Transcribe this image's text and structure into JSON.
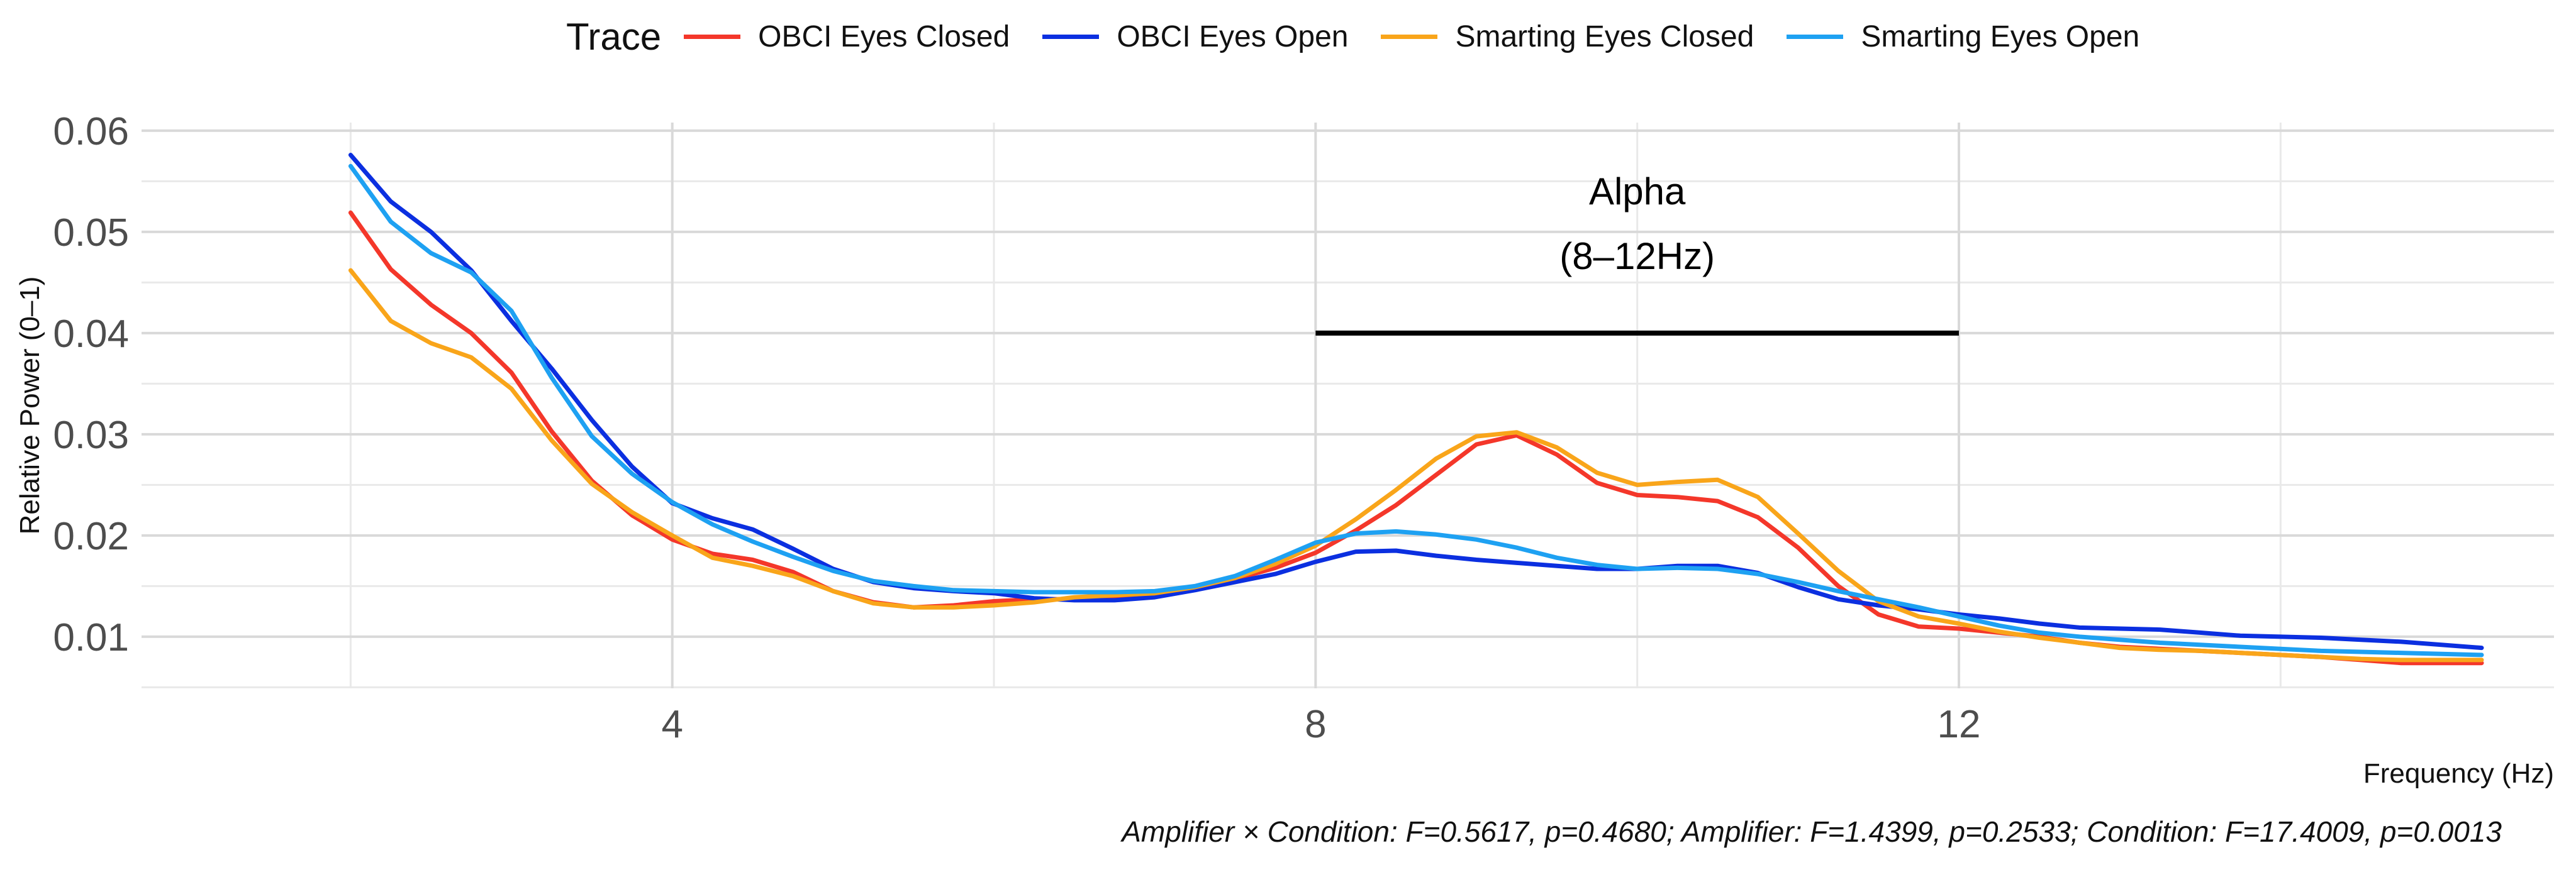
{
  "legend": {
    "title": "Trace",
    "items": [
      {
        "label": "OBCI Eyes Closed",
        "color": "#F4372A"
      },
      {
        "label": "OBCI Eyes Open",
        "color": "#0B2FE0"
      },
      {
        "label": "Smarting Eyes Closed",
        "color": "#F9A51A"
      },
      {
        "label": "Smarting Eyes Open",
        "color": "#1EA1F2"
      }
    ]
  },
  "caption": "Amplifier × Condition: F=0.5617, p=0.4680; Amplifier: F=1.4399, p=0.2533; Condition: F=17.4009, p=0.0013",
  "chart_data": {
    "type": "line",
    "title": "",
    "xlabel": "Frequency (Hz)",
    "ylabel": "Relative Power (0–1)",
    "xlim": [
      0.7,
      15.7
    ],
    "ylim": [
      0.0049,
      0.0608
    ],
    "xticks": [
      4,
      8,
      12
    ],
    "xtick_labels": [
      "4",
      "8",
      "12"
    ],
    "yticks": [
      0.01,
      0.02,
      0.03,
      0.04,
      0.05,
      0.06
    ],
    "ytick_labels": [
      "0.01",
      "0.02",
      "0.03",
      "0.04",
      "0.05",
      "0.06"
    ],
    "grid": true,
    "legend_position": "top",
    "annotation": {
      "label_line1": "Alpha",
      "label_line2": "(8–12Hz)",
      "x_start": 8,
      "x_end": 12,
      "y": 0.04,
      "color": "#000000"
    },
    "x": [
      2.0,
      2.25,
      2.5,
      2.75,
      3.0,
      3.25,
      3.5,
      3.75,
      4.0,
      4.25,
      4.5,
      4.75,
      5.0,
      5.25,
      5.5,
      5.75,
      6.0,
      6.25,
      6.5,
      6.75,
      7.0,
      7.25,
      7.5,
      7.75,
      8.0,
      8.25,
      8.5,
      8.75,
      9.0,
      9.25,
      9.5,
      9.75,
      10.0,
      10.25,
      10.5,
      10.75,
      11.0,
      11.25,
      11.5,
      11.75,
      12.0,
      12.25,
      12.5,
      12.75,
      13.0,
      13.25,
      13.5,
      13.75,
      14.0,
      14.25,
      14.5,
      14.75,
      15.0,
      15.25
    ],
    "series": [
      {
        "name": "OBCI Eyes Closed",
        "color": "#F4372A",
        "values": [
          0.0519,
          0.0463,
          0.0428,
          0.04,
          0.0361,
          0.0303,
          0.0254,
          0.022,
          0.0196,
          0.0182,
          0.0176,
          0.0164,
          0.0145,
          0.0134,
          0.0129,
          0.0131,
          0.0135,
          0.0137,
          0.0137,
          0.014,
          0.0143,
          0.0149,
          0.0157,
          0.0168,
          0.0183,
          0.0205,
          0.023,
          0.026,
          0.029,
          0.0299,
          0.028,
          0.0252,
          0.024,
          0.0238,
          0.0234,
          0.0218,
          0.0188,
          0.015,
          0.0122,
          0.011,
          0.0108,
          0.0104,
          0.01,
          0.0094,
          0.009,
          0.0088,
          0.0086,
          0.0084,
          0.0082,
          0.008,
          0.0077,
          0.0074,
          0.0074,
          0.0074
        ]
      },
      {
        "name": "OBCI Eyes Open",
        "color": "#0B2FE0",
        "values": [
          0.0576,
          0.053,
          0.05,
          0.0462,
          0.0412,
          0.0365,
          0.0314,
          0.0268,
          0.0232,
          0.0217,
          0.0206,
          0.0187,
          0.0167,
          0.0154,
          0.0148,
          0.0145,
          0.0143,
          0.0138,
          0.0136,
          0.0136,
          0.0139,
          0.0146,
          0.0154,
          0.0162,
          0.0174,
          0.0184,
          0.0185,
          0.018,
          0.0176,
          0.0173,
          0.017,
          0.0167,
          0.0167,
          0.017,
          0.017,
          0.0163,
          0.0149,
          0.0137,
          0.0131,
          0.0127,
          0.0122,
          0.0118,
          0.0113,
          0.0109,
          0.0108,
          0.0107,
          0.0104,
          0.0101,
          0.01,
          0.0099,
          0.0097,
          0.0095,
          0.0092,
          0.0089
        ]
      },
      {
        "name": "Smarting Eyes Closed",
        "color": "#F9A51A",
        "values": [
          0.0462,
          0.0412,
          0.039,
          0.0376,
          0.0345,
          0.0294,
          0.0251,
          0.0223,
          0.02,
          0.0178,
          0.017,
          0.016,
          0.0145,
          0.0133,
          0.0129,
          0.0129,
          0.0131,
          0.0134,
          0.0139,
          0.0141,
          0.0143,
          0.0149,
          0.0158,
          0.0172,
          0.019,
          0.0216,
          0.0245,
          0.0276,
          0.0298,
          0.0302,
          0.0287,
          0.0262,
          0.025,
          0.0253,
          0.0255,
          0.0238,
          0.0202,
          0.0165,
          0.0135,
          0.012,
          0.0113,
          0.0105,
          0.0099,
          0.0094,
          0.0089,
          0.0087,
          0.0086,
          0.0084,
          0.0082,
          0.008,
          0.0078,
          0.0077,
          0.0077,
          0.0077
        ]
      },
      {
        "name": "Smarting Eyes Open",
        "color": "#1EA1F2",
        "values": [
          0.0565,
          0.051,
          0.0479,
          0.046,
          0.0422,
          0.0356,
          0.0298,
          0.0261,
          0.0233,
          0.0211,
          0.0194,
          0.0179,
          0.0165,
          0.0155,
          0.015,
          0.0146,
          0.0145,
          0.0144,
          0.0144,
          0.0144,
          0.0145,
          0.015,
          0.016,
          0.0176,
          0.0193,
          0.0202,
          0.0204,
          0.0201,
          0.0196,
          0.0188,
          0.0178,
          0.0171,
          0.0167,
          0.0168,
          0.0167,
          0.0162,
          0.0154,
          0.0145,
          0.0137,
          0.0129,
          0.012,
          0.0111,
          0.0104,
          0.01,
          0.0097,
          0.0094,
          0.0092,
          0.009,
          0.0088,
          0.0086,
          0.0085,
          0.0084,
          0.0083,
          0.0082
        ]
      }
    ]
  }
}
